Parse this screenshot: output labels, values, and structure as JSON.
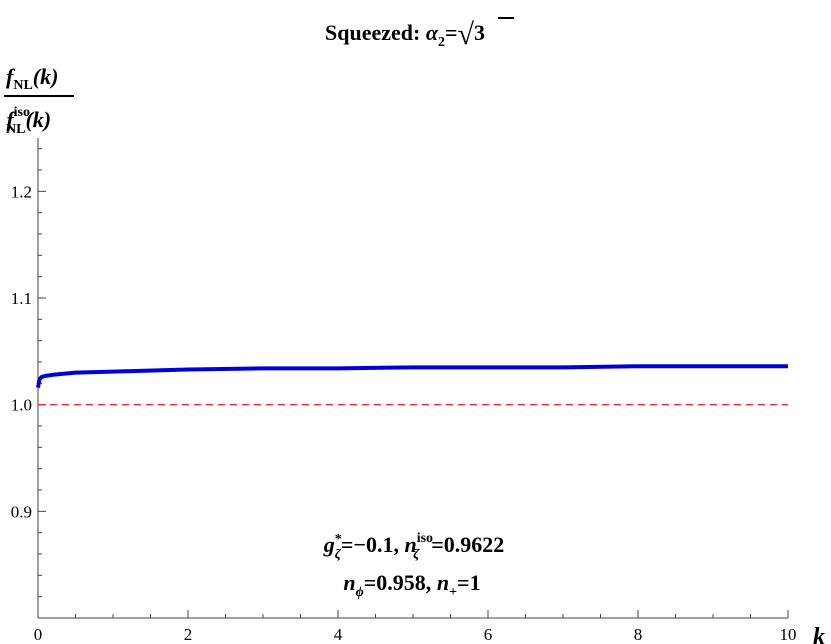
{
  "chart_data": {
    "type": "line",
    "title": {
      "prefix": "Squeezed: ",
      "alpha": "α",
      "alpha_sub": "2",
      "equals": "=",
      "radical": "√",
      "radicand": "3"
    },
    "ylabel": {
      "num_f": "f",
      "num_sub": "NL",
      "num_arg": "(k)",
      "den_f": "f",
      "den_sup": "iso",
      "den_sub": "NL",
      "den_arg": "(k)"
    },
    "xlabel": "k",
    "xlim": [
      0,
      10
    ],
    "ylim": [
      0.8,
      1.25
    ],
    "x_ticks": [
      "0",
      "2",
      "4",
      "6",
      "8",
      "10"
    ],
    "y_ticks": [
      "0.9",
      "1.0",
      "1.1",
      "1.2"
    ],
    "series": [
      {
        "color": "#0000dd",
        "x": [
          0.0,
          0.02,
          0.05,
          0.1,
          0.2,
          0.5,
          1,
          2,
          3,
          4,
          5,
          6,
          7,
          8,
          9,
          10
        ],
        "y": [
          1.016,
          1.024,
          1.026,
          1.027,
          1.028,
          1.03,
          1.031,
          1.033,
          1.034,
          1.034,
          1.035,
          1.035,
          1.035,
          1.036,
          1.036,
          1.036
        ]
      }
    ],
    "reference_line": {
      "y": 1.0,
      "color": "#e03030",
      "style": "dashed"
    },
    "annotations": {
      "line1": {
        "g": "g",
        "g_sup": "*",
        "g_sub": "ζ",
        "g_val": "=−0.1, ",
        "n": "n",
        "n_sup": "iso",
        "n_sub": "ζ",
        "n_val": "=0.9622"
      },
      "line2": {
        "n1": "n",
        "n1_sub": "ϕ",
        "n1_val": "=0.958, ",
        "n2": "n",
        "n2_sub": "+",
        "n2_val": "=1"
      }
    }
  }
}
